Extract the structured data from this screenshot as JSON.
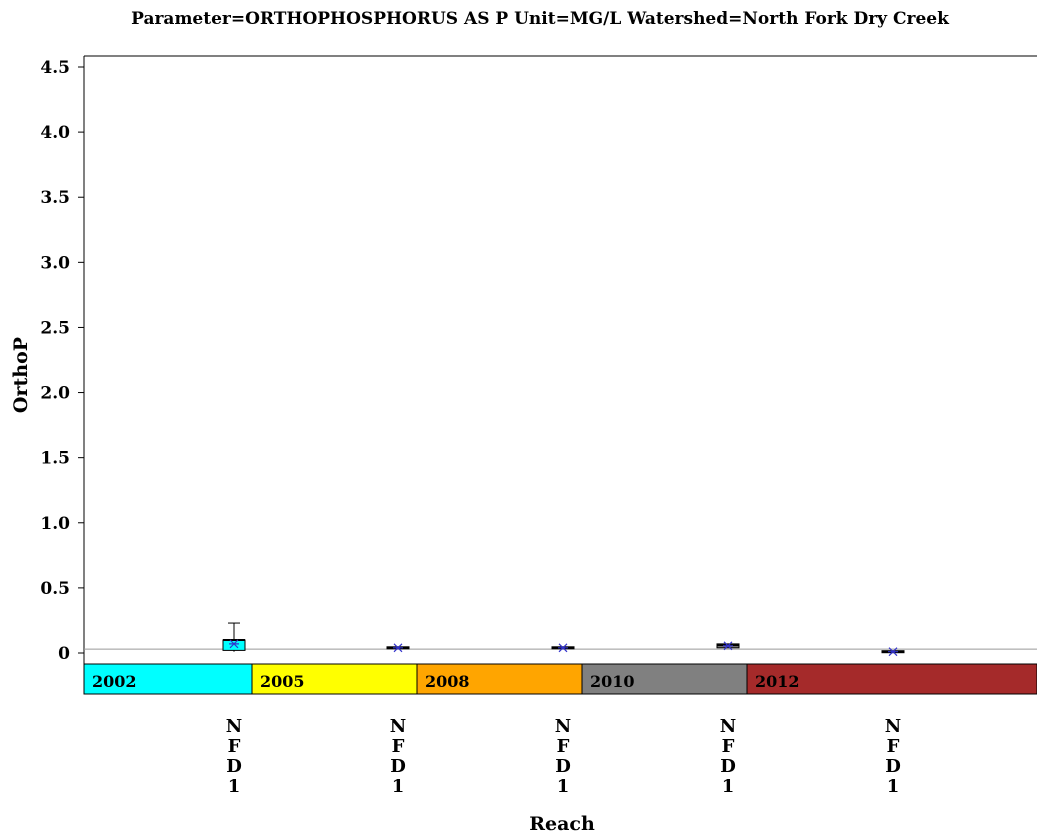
{
  "chart_data": {
    "type": "box",
    "title": "Parameter=ORTHOPHOSPHORUS AS P Unit=MG/L Watershed=North Fork Dry Creek",
    "ylabel": "OrthoP",
    "xlabel": "Reach",
    "ylim": [
      0,
      4.6
    ],
    "yticks": [
      0,
      0.5,
      1.0,
      1.5,
      2.0,
      2.5,
      3.0,
      3.5,
      4.0,
      4.5
    ],
    "ytick_labels": [
      "0",
      "0.5",
      "1.0",
      "1.5",
      "2.0",
      "2.5",
      "3.0",
      "3.5",
      "4.0",
      "4.5"
    ],
    "reference_line": 0.03,
    "groups": [
      {
        "label": "2002",
        "color": "#00ffff"
      },
      {
        "label": "2005",
        "color": "#ffff00"
      },
      {
        "label": "2008",
        "color": "#ffa500"
      },
      {
        "label": "2010",
        "color": "#808080"
      },
      {
        "label": "2012",
        "color": "#a52a2a"
      }
    ],
    "boxes": [
      {
        "category": "NFD1",
        "group": "2002",
        "fill": "#00ffff",
        "min": 0.01,
        "q1": 0.02,
        "median": 0.1,
        "q3": 0.1,
        "max": 0.23,
        "mean": 0.07
      },
      {
        "category": "NFD1",
        "group": "2005",
        "fill": "#ffff00",
        "min": 0.04,
        "q1": 0.04,
        "median": 0.04,
        "q3": 0.04,
        "max": 0.04,
        "mean": 0.04
      },
      {
        "category": "NFD1",
        "group": "2008",
        "fill": "#ffa500",
        "min": 0.04,
        "q1": 0.04,
        "median": 0.04,
        "q3": 0.04,
        "max": 0.04,
        "mean": 0.04
      },
      {
        "category": "NFD1",
        "group": "2010",
        "fill": "#808080",
        "min": 0.04,
        "q1": 0.04,
        "median": 0.06,
        "q3": 0.07,
        "max": 0.07,
        "mean": 0.055
      },
      {
        "category": "NFD1",
        "group": "2012",
        "fill": "#a52a2a",
        "min": 0.01,
        "q1": 0.01,
        "median": 0.01,
        "q3": 0.01,
        "max": 0.01,
        "mean": 0.01
      }
    ],
    "category_labels": [
      "N\nF\nD\n1",
      "N\nF\nD\n1",
      "N\nF\nD\n1",
      "N\nF\nD\n1",
      "N\nF\nD\n1"
    ],
    "mean_marker_color": "#3333cc",
    "grid": false
  }
}
